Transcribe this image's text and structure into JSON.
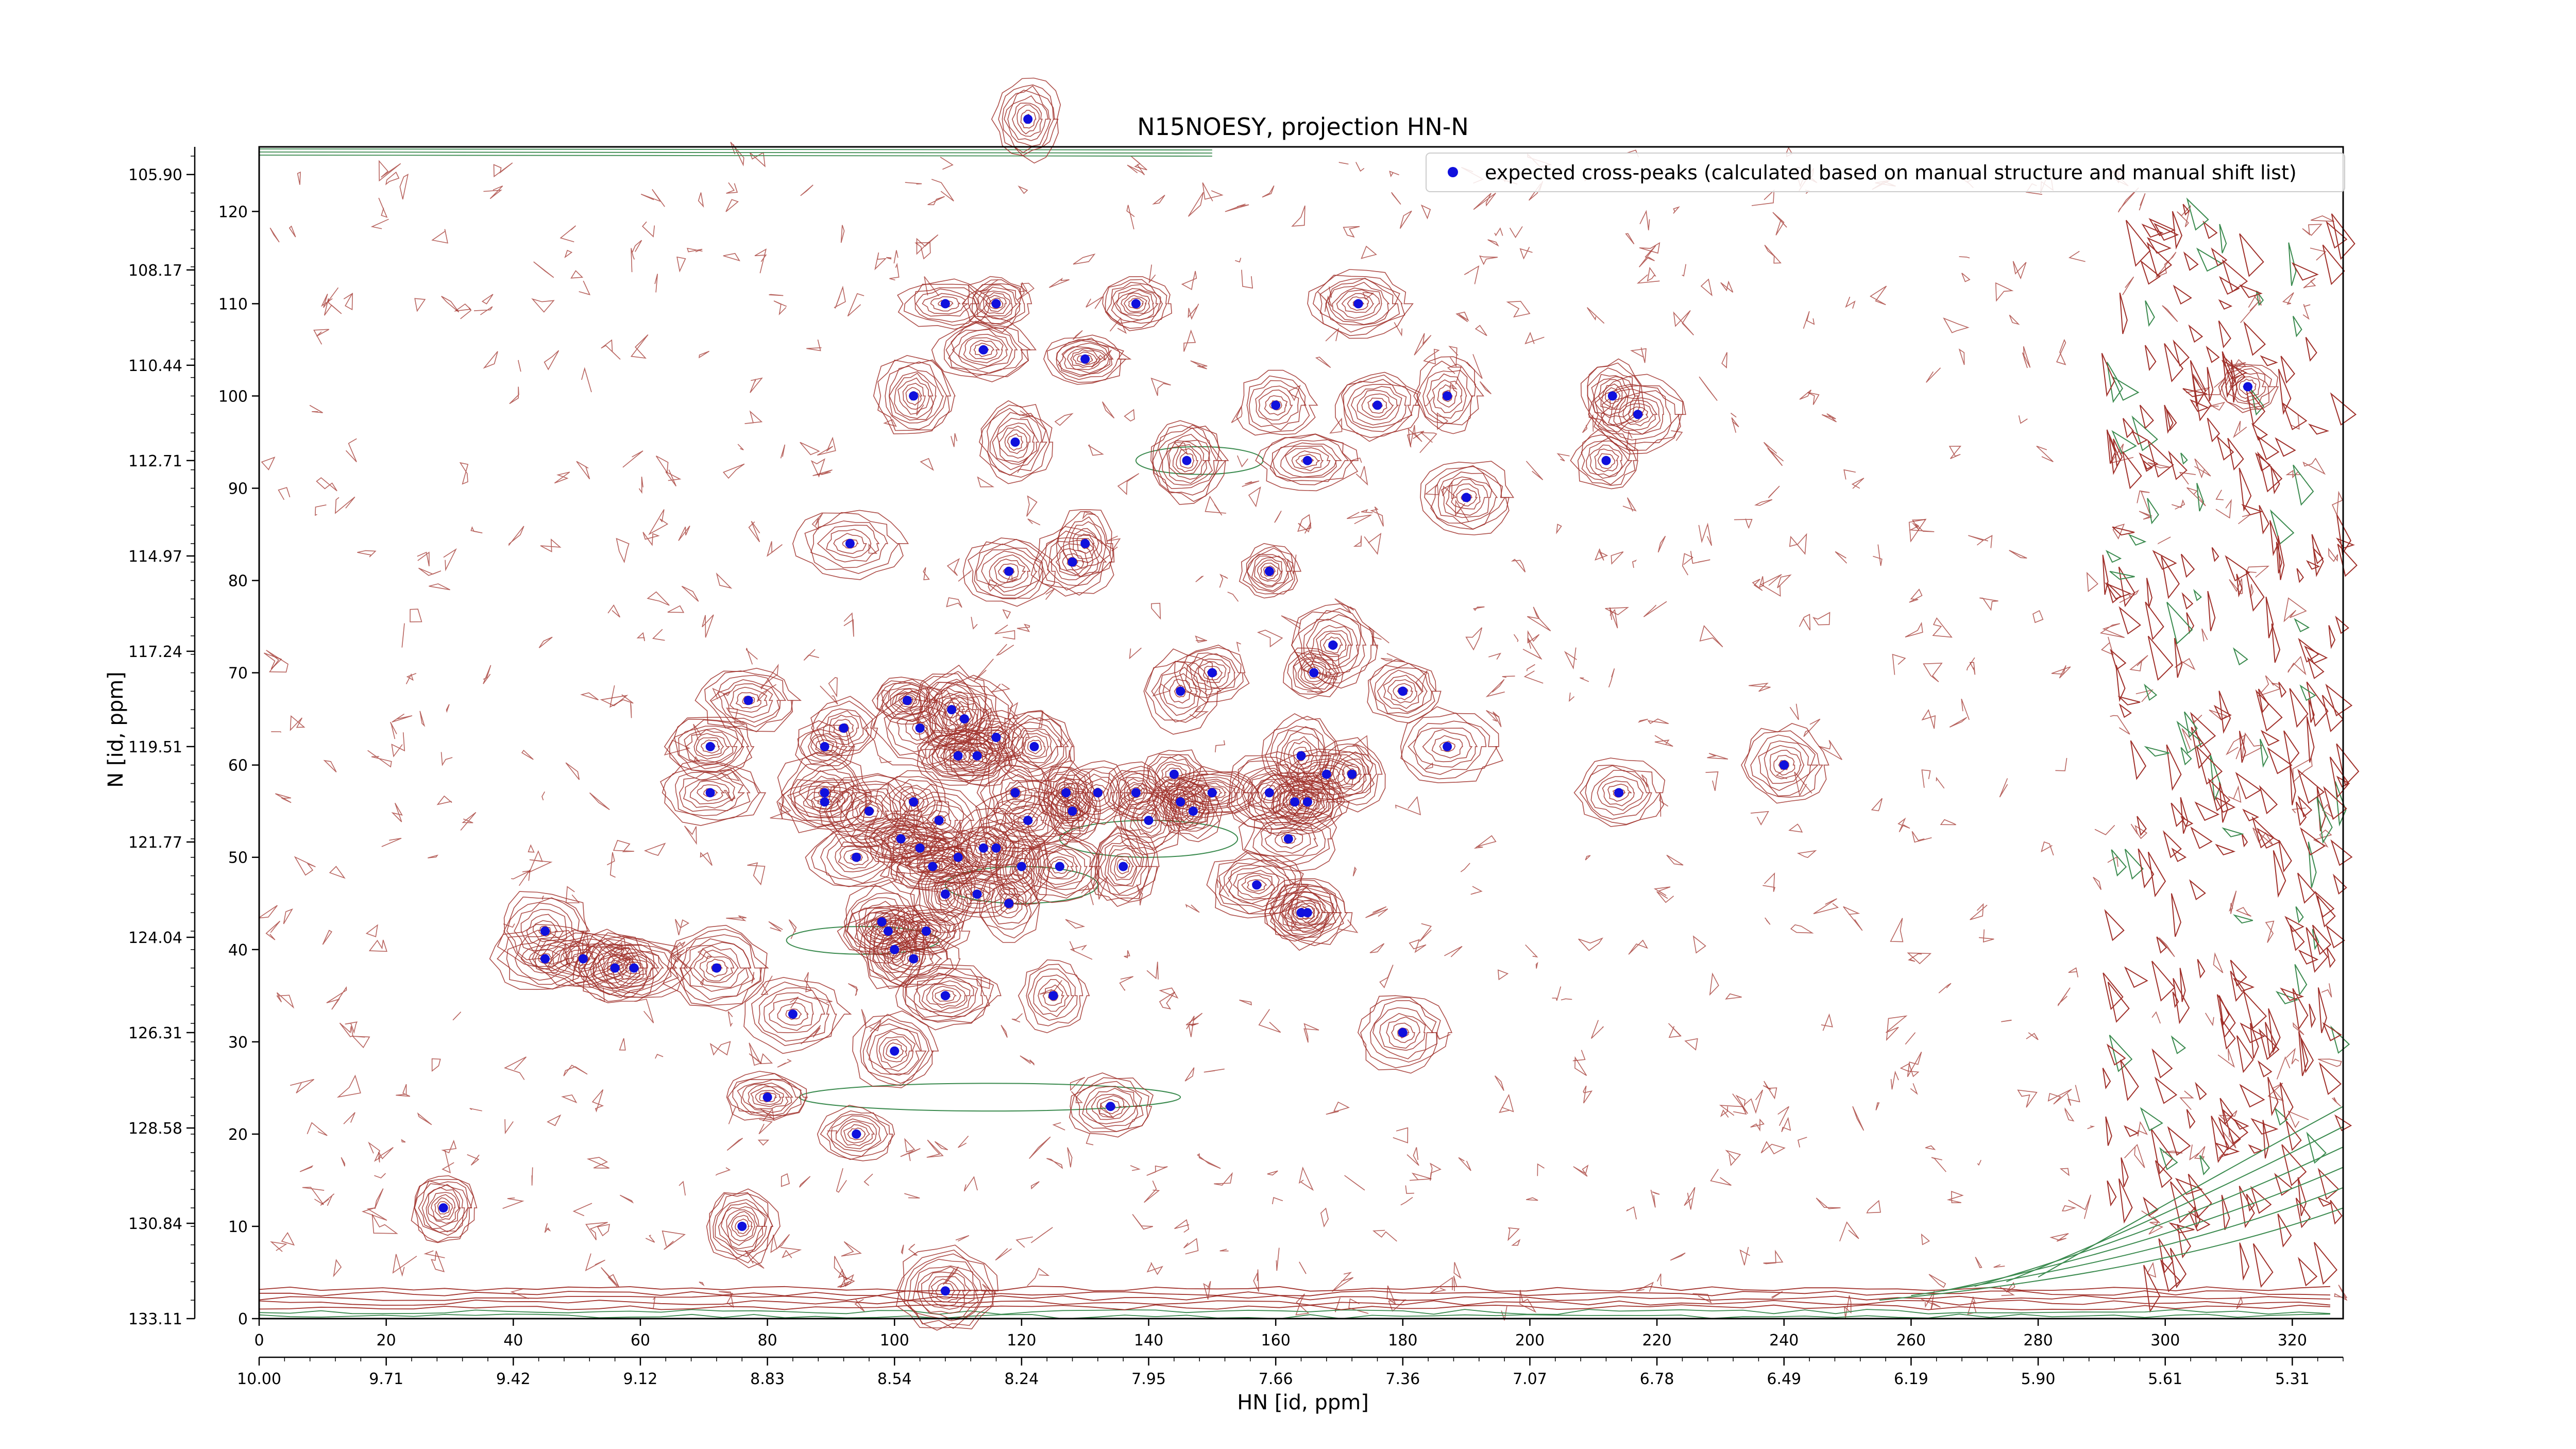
{
  "chart_data": {
    "type": "scatter",
    "title": "N15NOESY, projection HN-N",
    "xlabel": "HN [id, ppm]",
    "ylabel": "N [id, ppm]",
    "colors": {
      "peak_marker": "#1010dd",
      "contour_positive": "#a0302a",
      "contour_negative": "#3a8a4e"
    },
    "x_index_range": [
      0,
      328
    ],
    "y_index_range": [
      0,
      127
    ],
    "x_index_ticks": [
      0,
      20,
      40,
      60,
      80,
      100,
      120,
      140,
      160,
      180,
      200,
      220,
      240,
      260,
      280,
      300,
      320
    ],
    "y_index_ticks": [
      0,
      10,
      20,
      30,
      40,
      50,
      60,
      70,
      80,
      90,
      100,
      110,
      120
    ],
    "x_ppm_ticks": [
      {
        "index": 0,
        "label": "10.00"
      },
      {
        "index": 20,
        "label": "9.71"
      },
      {
        "index": 40,
        "label": "9.42"
      },
      {
        "index": 60,
        "label": "9.12"
      },
      {
        "index": 80,
        "label": "8.83"
      },
      {
        "index": 100,
        "label": "8.54"
      },
      {
        "index": 120,
        "label": "8.24"
      },
      {
        "index": 140,
        "label": "7.95"
      },
      {
        "index": 160,
        "label": "7.66"
      },
      {
        "index": 180,
        "label": "7.36"
      },
      {
        "index": 200,
        "label": "7.07"
      },
      {
        "index": 220,
        "label": "6.78"
      },
      {
        "index": 240,
        "label": "6.49"
      },
      {
        "index": 260,
        "label": "6.19"
      },
      {
        "index": 280,
        "label": "5.90"
      },
      {
        "index": 300,
        "label": "5.61"
      },
      {
        "index": 320,
        "label": "5.31"
      }
    ],
    "y_ppm_ticks": [
      {
        "index": 0,
        "label": "133.11"
      },
      {
        "index": 10.33,
        "label": "130.84"
      },
      {
        "index": 20.66,
        "label": "128.58"
      },
      {
        "index": 31,
        "label": "126.31"
      },
      {
        "index": 41.33,
        "label": "124.04"
      },
      {
        "index": 51.66,
        "label": "121.77"
      },
      {
        "index": 62,
        "label": "119.51"
      },
      {
        "index": 72.33,
        "label": "117.24"
      },
      {
        "index": 82.66,
        "label": "114.97"
      },
      {
        "index": 93,
        "label": "112.71"
      },
      {
        "index": 103.33,
        "label": "110.44"
      },
      {
        "index": 113.66,
        "label": "108.17"
      },
      {
        "index": 124,
        "label": "105.90"
      }
    ],
    "legend": {
      "placement": "top-right",
      "entries": [
        {
          "label": "expected cross-peaks (calculated based on manual structure and manual shift list)",
          "color": "#1010dd"
        }
      ]
    },
    "series": [
      {
        "name": "expected cross-peaks (calculated based on manual structure and manual shift list)",
        "points": [
          [
            121,
            130
          ],
          [
            108,
            110
          ],
          [
            116,
            110
          ],
          [
            138,
            110
          ],
          [
            173,
            110
          ],
          [
            114,
            105
          ],
          [
            130,
            104
          ],
          [
            103,
            100
          ],
          [
            160,
            99
          ],
          [
            176,
            99
          ],
          [
            187,
            100
          ],
          [
            213,
            100
          ],
          [
            217,
            98
          ],
          [
            119,
            95
          ],
          [
            146,
            93
          ],
          [
            165,
            93
          ],
          [
            212,
            93
          ],
          [
            190,
            89
          ],
          [
            93,
            84
          ],
          [
            130,
            84
          ],
          [
            118,
            81
          ],
          [
            128,
            82
          ],
          [
            159,
            81
          ],
          [
            169,
            73
          ],
          [
            166,
            70
          ],
          [
            150,
            70
          ],
          [
            145,
            68
          ],
          [
            180,
            68
          ],
          [
            77,
            67
          ],
          [
            102,
            67
          ],
          [
            109,
            66
          ],
          [
            111,
            65
          ],
          [
            104,
            64
          ],
          [
            116,
            63
          ],
          [
            92,
            64
          ],
          [
            89,
            62
          ],
          [
            71,
            62
          ],
          [
            113,
            61
          ],
          [
            122,
            62
          ],
          [
            110,
            61
          ],
          [
            164,
            61
          ],
          [
            168,
            59
          ],
          [
            187,
            62
          ],
          [
            144,
            59
          ],
          [
            172,
            59
          ],
          [
            89,
            57
          ],
          [
            119,
            57
          ],
          [
            132,
            57
          ],
          [
            138,
            57
          ],
          [
            150,
            57
          ],
          [
            127,
            57
          ],
          [
            159,
            57
          ],
          [
            71,
            57
          ],
          [
            163,
            56
          ],
          [
            165,
            56
          ],
          [
            89,
            56
          ],
          [
            103,
            56
          ],
          [
            128,
            55
          ],
          [
            145,
            56
          ],
          [
            147,
            55
          ],
          [
            140,
            54
          ],
          [
            107,
            54
          ],
          [
            121,
            54
          ],
          [
            162,
            52
          ],
          [
            96,
            55
          ],
          [
            101,
            52
          ],
          [
            104,
            51
          ],
          [
            114,
            51
          ],
          [
            116,
            51
          ],
          [
            110,
            50
          ],
          [
            120,
            49
          ],
          [
            136,
            49
          ],
          [
            106,
            49
          ],
          [
            94,
            50
          ],
          [
            126,
            49
          ],
          [
            108,
            46
          ],
          [
            113,
            46
          ],
          [
            157,
            47
          ],
          [
            118,
            45
          ],
          [
            164,
            44
          ],
          [
            165,
            44
          ],
          [
            98,
            43
          ],
          [
            99,
            42
          ],
          [
            105,
            42
          ],
          [
            100,
            40
          ],
          [
            103,
            39
          ],
          [
            45,
            42
          ],
          [
            45,
            39
          ],
          [
            51,
            39
          ],
          [
            56,
            38
          ],
          [
            59,
            38
          ],
          [
            72,
            38
          ],
          [
            108,
            35
          ],
          [
            125,
            35
          ],
          [
            84,
            33
          ],
          [
            180,
            31
          ],
          [
            100,
            29
          ],
          [
            80,
            24
          ],
          [
            134,
            23
          ],
          [
            94,
            20
          ],
          [
            29,
            12
          ],
          [
            76,
            10
          ],
          [
            108,
            3
          ],
          [
            240,
            60
          ],
          [
            214,
            57
          ],
          [
            313,
            101
          ]
        ]
      }
    ]
  }
}
